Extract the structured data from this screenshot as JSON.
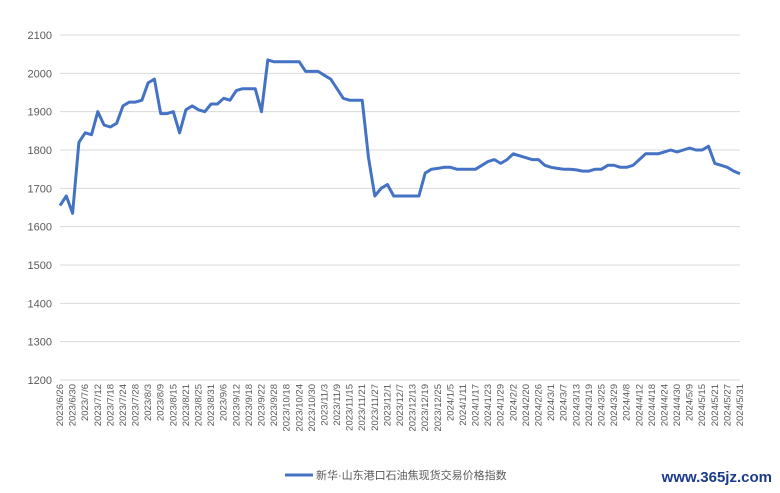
{
  "chart_data": {
    "type": "line",
    "watermark": "www.365jz.com",
    "categories": [
      "2023/6/26",
      null,
      "2023/6/30",
      null,
      "2023/7/6",
      null,
      "2023/7/12",
      null,
      "2023/7/18",
      null,
      "2023/7/24",
      null,
      "2023/7/28",
      null,
      "2023/8/3",
      null,
      "2023/8/9",
      null,
      "2023/8/15",
      null,
      "2023/8/21",
      null,
      "2023/8/25",
      null,
      "2023/8/31",
      null,
      "2023/9/6",
      null,
      "2023/9/12",
      null,
      "2023/9/18",
      null,
      "2023/9/22",
      null,
      "2023/9/28",
      null,
      "2023/10/18",
      null,
      "2023/10/24",
      null,
      "2023/10/30",
      null,
      "2023/11/3",
      null,
      "2023/11/9",
      null,
      "2023/11/15",
      null,
      "2023/11/21",
      null,
      "2023/11/27",
      null,
      "2023/12/1",
      null,
      "2023/12/7",
      null,
      "2023/12/13",
      null,
      "2023/12/19",
      null,
      "2023/12/25",
      null,
      "2024/1/5",
      null,
      "2024/1/11",
      null,
      "2024/1/17",
      null,
      "2024/1/23",
      null,
      "2024/1/29",
      null,
      "2024/2/2",
      null,
      "2024/2/20",
      null,
      "2024/2/26",
      null,
      "2024/3/1",
      null,
      "2024/3/7",
      null,
      "2024/3/13",
      null,
      "2024/3/19",
      null,
      "2024/3/25",
      null,
      "2024/3/29",
      null,
      "2024/4/8",
      null,
      "2024/4/12",
      null,
      "2024/4/18",
      null,
      "2024/4/24",
      null,
      "2024/4/30",
      null,
      "2024/5/9",
      null,
      "2024/5/15",
      null,
      "2024/5/21",
      null,
      "2024/5/27",
      null,
      "2024/5/31"
    ],
    "series": [
      {
        "name": "新华·山东港口石油焦现货交易价格指数",
        "color": "#4472c4",
        "values": [
          1655,
          1680,
          1635,
          1820,
          1845,
          1840,
          1900,
          1865,
          1860,
          1870,
          1915,
          1925,
          1925,
          1930,
          1975,
          1985,
          1895,
          1895,
          1900,
          1845,
          1905,
          1915,
          1905,
          1900,
          1920,
          1920,
          1935,
          1930,
          1955,
          1960,
          1960,
          1960,
          1900,
          2035,
          2030,
          2030,
          2030,
          2030,
          2030,
          2005,
          2005,
          2005,
          1995,
          1985,
          1960,
          1935,
          1930,
          1930,
          1930,
          1780,
          1680,
          1700,
          1710,
          1680,
          1680,
          1680,
          1680,
          1680,
          1740,
          1750,
          1752,
          1755,
          1755,
          1750,
          1750,
          1750,
          1750,
          1760,
          1770,
          1775,
          1765,
          1775,
          1790,
          1785,
          1780,
          1775,
          1775,
          1760,
          1755,
          1752,
          1750,
          1750,
          1748,
          1745,
          1745,
          1750,
          1750,
          1760,
          1760,
          1755,
          1755,
          1760,
          1775,
          1790,
          1790,
          1790,
          1795,
          1800,
          1795,
          1800,
          1805,
          1800,
          1800,
          1810,
          1765,
          1760,
          1755,
          1745,
          1738
        ]
      }
    ],
    "ylim": [
      1200,
      2100
    ],
    "yticks": [
      1200,
      1300,
      1400,
      1500,
      1600,
      1700,
      1800,
      1900,
      2000,
      2100
    ],
    "grid": true,
    "legend": "bottom"
  }
}
